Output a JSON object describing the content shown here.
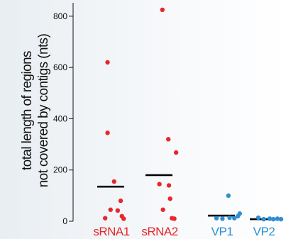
{
  "chart_data": {
    "type": "scatter",
    "ylabel_lines": [
      "total length of regions",
      "not covered by contigs (nts)"
    ],
    "yticks": [
      0,
      200,
      400,
      600,
      800
    ],
    "ylim": [
      0,
      830
    ],
    "grid": false,
    "legend": "none",
    "categories": [
      "sRNA1",
      "sRNA2",
      "VP1",
      "VP2"
    ],
    "colors": {
      "sRNA1": "#e8262b",
      "sRNA2": "#e8262b",
      "VP1": "#2e8fd4",
      "VP2": "#2e8fd4"
    },
    "series": [
      {
        "category": "sRNA1",
        "means": 135,
        "points": [
          {
            "offset": -0.32,
            "y": 620
          },
          {
            "offset": -0.32,
            "y": 345
          },
          {
            "offset": -0.1,
            "y": 155
          },
          {
            "offset": 0.12,
            "y": 80
          },
          {
            "offset": -0.22,
            "y": 45
          },
          {
            "offset": 0.02,
            "y": 42
          },
          {
            "offset": 0.16,
            "y": 20
          },
          {
            "offset": -0.4,
            "y": 12
          },
          {
            "offset": 0.22,
            "y": 10
          }
        ]
      },
      {
        "category": "sRNA2",
        "means": 180,
        "points": [
          {
            "offset": -0.1,
            "y": 825
          },
          {
            "offset": 0.1,
            "y": 320
          },
          {
            "offset": 0.36,
            "y": 268
          },
          {
            "offset": -0.2,
            "y": 145
          },
          {
            "offset": 0.12,
            "y": 140
          },
          {
            "offset": 0.16,
            "y": 88
          },
          {
            "offset": -0.08,
            "y": 45
          },
          {
            "offset": 0.22,
            "y": 12
          },
          {
            "offset": 0.3,
            "y": 10
          }
        ]
      },
      {
        "category": "VP1",
        "means": 22,
        "points": [
          {
            "offset": 0.02,
            "y": 100
          },
          {
            "offset": 0.4,
            "y": 30
          },
          {
            "offset": -0.38,
            "y": 12
          },
          {
            "offset": -0.18,
            "y": 10
          },
          {
            "offset": 0.06,
            "y": 14
          },
          {
            "offset": 0.22,
            "y": 12
          },
          {
            "offset": 0.34,
            "y": 20
          }
        ]
      },
      {
        "category": "VP2",
        "means": 8,
        "points": [
          {
            "offset": -0.38,
            "y": 14
          },
          {
            "offset": -0.2,
            "y": 8
          },
          {
            "offset": 0.0,
            "y": 10
          },
          {
            "offset": 0.12,
            "y": 8
          },
          {
            "offset": 0.26,
            "y": 10
          },
          {
            "offset": 0.38,
            "y": 8
          }
        ]
      }
    ]
  }
}
